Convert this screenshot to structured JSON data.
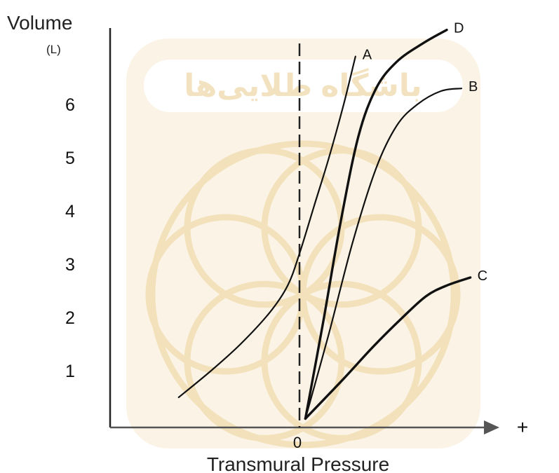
{
  "chart_data": {
    "type": "line",
    "ylabel": "Volume",
    "yunit": "(L)",
    "xlabel": "Transmural Pressure",
    "x_tick_labels": [
      "0",
      "+"
    ],
    "y_ticks": [
      1,
      2,
      3,
      4,
      5,
      6
    ],
    "xlim": [
      -6,
      7
    ],
    "ylim": [
      -0.2,
      7.5
    ],
    "grid": false,
    "series": [
      {
        "name": "A",
        "x": [
          -4.1,
          -3.0,
          -2.0,
          -1.0,
          -0.4,
          0.0,
          0.5,
          1.0,
          1.5,
          1.9
        ],
        "y": [
          0.5,
          1.0,
          1.5,
          2.1,
          2.6,
          3.2,
          4.1,
          5.0,
          6.0,
          6.9
        ]
      },
      {
        "name": "D",
        "x": [
          0.2,
          0.8,
          1.4,
          2.0,
          2.6,
          3.3,
          4.2,
          5.0
        ],
        "y": [
          0.1,
          1.9,
          3.8,
          5.4,
          6.3,
          6.8,
          7.15,
          7.4
        ]
      },
      {
        "name": "B",
        "x": [
          0.2,
          1.0,
          1.8,
          2.6,
          3.3,
          4.0,
          4.8,
          5.5
        ],
        "y": [
          0.1,
          1.7,
          3.4,
          4.8,
          5.6,
          6.0,
          6.25,
          6.3
        ]
      },
      {
        "name": "C",
        "x": [
          0.2,
          1.5,
          2.5,
          3.5,
          4.3,
          5.0,
          5.8
        ],
        "y": [
          0.1,
          0.85,
          1.45,
          2.0,
          2.4,
          2.6,
          2.75
        ]
      }
    ]
  },
  "watermark": {
    "text": "باشگاه طلایی‌ها",
    "color": "#f1ddb4"
  }
}
